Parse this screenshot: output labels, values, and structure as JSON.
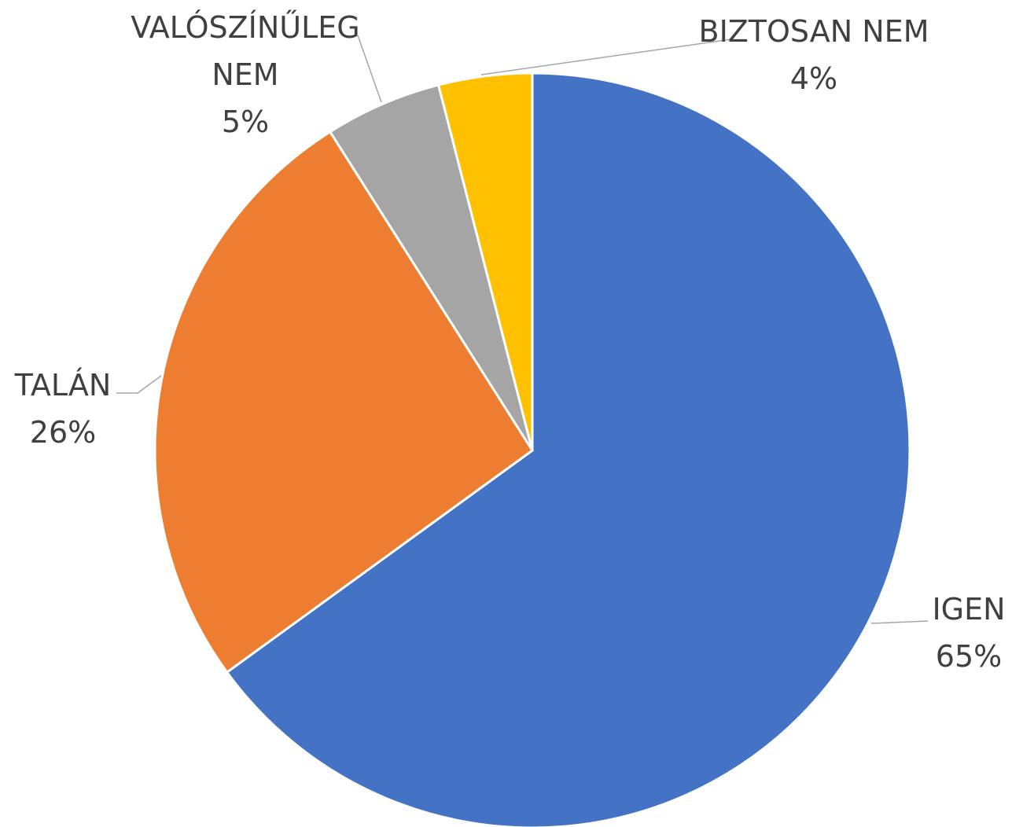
{
  "chart_data": {
    "type": "pie",
    "categories": [
      "IGEN",
      "TALÁN",
      "VALÓSZÍNŰLEG NEM",
      "BIZTOSAN NEM"
    ],
    "values": [
      65,
      26,
      5,
      4
    ],
    "value_labels": [
      "65%",
      "26%",
      "5%",
      "4%"
    ],
    "colors": [
      "#4472c4",
      "#ed7d31",
      "#a5a5a5",
      "#ffc000"
    ]
  }
}
